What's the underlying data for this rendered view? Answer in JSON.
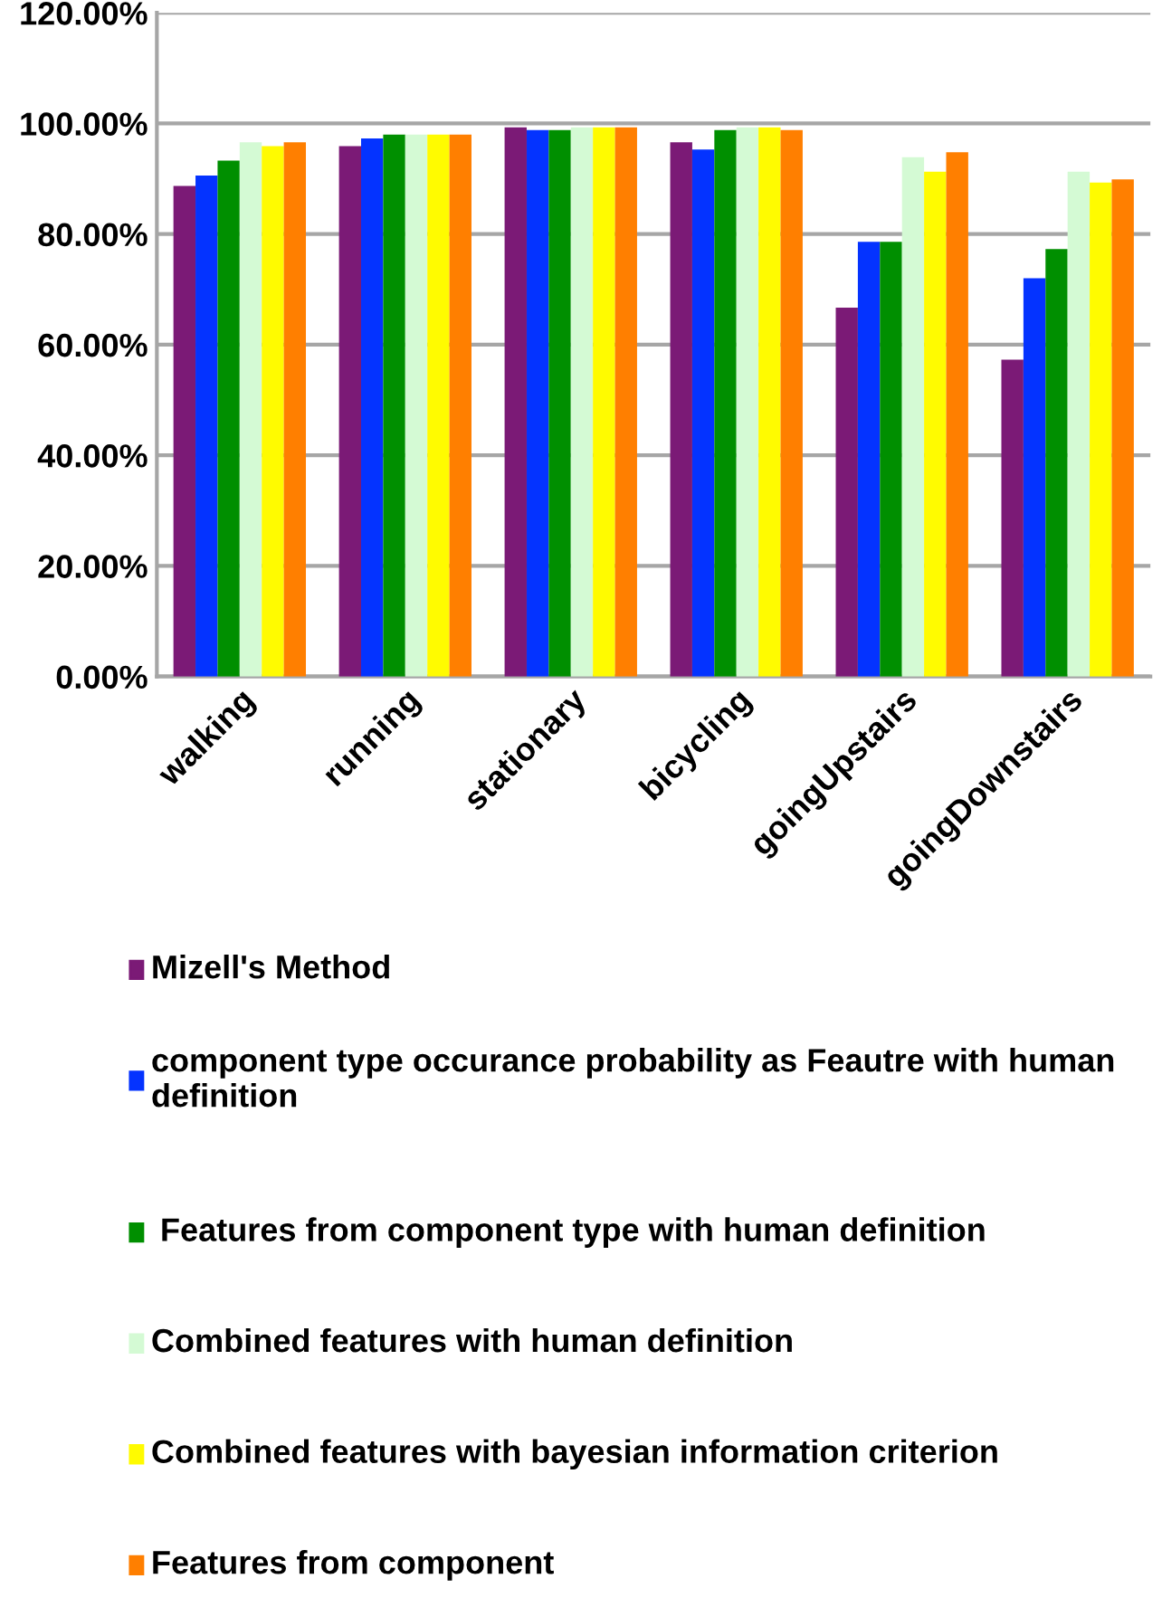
{
  "chart_data": {
    "type": "bar",
    "categories": [
      "walking",
      "running",
      "stationary",
      "bicycling",
      "goingUpstairs",
      "goingDownstairs"
    ],
    "series": [
      {
        "name": "Mizell's Method",
        "color": "#7b1a76",
        "values": [
          88.7,
          95.9,
          99.3,
          96.6,
          66.7,
          57.3
        ]
      },
      {
        "name": "component type occurance probability as Feautre with human definition",
        "color": "#0433ff",
        "values": [
          90.6,
          97.3,
          98.8,
          95.3,
          78.6,
          72.0
        ]
      },
      {
        "name": " Features from component type with human definition",
        "color": "#008f00",
        "values": [
          93.3,
          98.0,
          98.8,
          98.8,
          78.6,
          77.3
        ]
      },
      {
        "name": "Combined features with human definition",
        "color": "#d4fad4",
        "values": [
          96.6,
          98.0,
          99.3,
          99.3,
          93.9,
          91.3
        ]
      },
      {
        "name": "Combined features with bayesian information criterion",
        "color": "#fffb00",
        "values": [
          95.9,
          98.0,
          99.3,
          99.3,
          91.3,
          89.3
        ]
      },
      {
        "name": "Features from component",
        "color": "#ff7f00",
        "values": [
          96.6,
          98.0,
          99.3,
          98.8,
          94.8,
          89.9
        ]
      }
    ],
    "ylim": [
      0,
      120
    ],
    "yticks": [
      {
        "value": 0,
        "label": "0.00%"
      },
      {
        "value": 20,
        "label": "20.00%"
      },
      {
        "value": 40,
        "label": "40.00%"
      },
      {
        "value": 60,
        "label": "60.00%"
      },
      {
        "value": 80,
        "label": "80.00%"
      },
      {
        "value": 100,
        "label": "100.00%"
      },
      {
        "value": 120,
        "label": "120.00%"
      }
    ],
    "grid": "y",
    "legend": "bottom"
  }
}
